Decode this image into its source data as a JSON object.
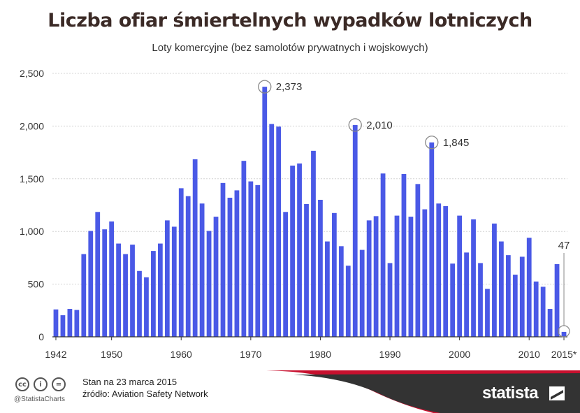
{
  "title": "Liczba ofiar śmiertelnych wypadków lotniczych",
  "subtitle": "Loty komercyjne (bez samolotów prywatnych i wojskowych)",
  "colors": {
    "bar": "#4a59e6",
    "title": "#3b2a26",
    "accent": "#c8102e",
    "footer_dark": "#333333"
  },
  "chart_data": {
    "type": "bar",
    "x": [
      1942,
      1943,
      1944,
      1945,
      1946,
      1947,
      1948,
      1949,
      1950,
      1951,
      1952,
      1953,
      1954,
      1955,
      1956,
      1957,
      1958,
      1959,
      1960,
      1961,
      1962,
      1963,
      1964,
      1965,
      1966,
      1967,
      1968,
      1969,
      1970,
      1971,
      1972,
      1973,
      1974,
      1975,
      1976,
      1977,
      1978,
      1979,
      1980,
      1981,
      1982,
      1983,
      1984,
      1985,
      1986,
      1987,
      1988,
      1989,
      1990,
      1991,
      1992,
      1993,
      1994,
      1995,
      1996,
      1997,
      1998,
      1999,
      2000,
      2001,
      2002,
      2003,
      2004,
      2005,
      2006,
      2007,
      2008,
      2009,
      2010,
      2011,
      2012,
      2013,
      2014,
      2015
    ],
    "values": [
      260,
      205,
      265,
      255,
      785,
      1005,
      1185,
      1020,
      1095,
      885,
      785,
      875,
      625,
      565,
      815,
      885,
      1105,
      1045,
      1410,
      1335,
      1685,
      1265,
      1005,
      1140,
      1460,
      1320,
      1390,
      1670,
      1475,
      1440,
      2373,
      2020,
      1995,
      1185,
      1625,
      1645,
      1260,
      1765,
      1300,
      905,
      1175,
      860,
      675,
      2010,
      825,
      1105,
      1145,
      1550,
      700,
      1150,
      1545,
      1140,
      1450,
      1210,
      1845,
      1265,
      1240,
      695,
      1150,
      800,
      1115,
      700,
      455,
      1075,
      905,
      775,
      590,
      760,
      940,
      525,
      475,
      265,
      690,
      47
    ],
    "x_tick_labels": [
      "1942",
      "1950",
      "1960",
      "1970",
      "1980",
      "1990",
      "2000",
      "2010",
      "2015*"
    ],
    "y_tick_labels": [
      "0",
      "500",
      "1,000",
      "1,500",
      "2,000",
      "2,500"
    ],
    "ylim": [
      0,
      2500
    ],
    "grid": true,
    "annotations": [
      {
        "x": 1972,
        "label": "2,373",
        "circled": true
      },
      {
        "x": 1985,
        "label": "2,010",
        "circled": true
      },
      {
        "x": 1996,
        "label": "1,845",
        "circled": true
      },
      {
        "x": 2015,
        "label": "47",
        "circled": true
      }
    ]
  },
  "footer": {
    "date_line": "Stan na 23 marca 2015",
    "source_line": "źródło: Aviation Safety Network",
    "handle": "@StatistaCharts",
    "brand": "statista",
    "icons": [
      "cc-icon",
      "by-icon",
      "nd-icon"
    ]
  }
}
